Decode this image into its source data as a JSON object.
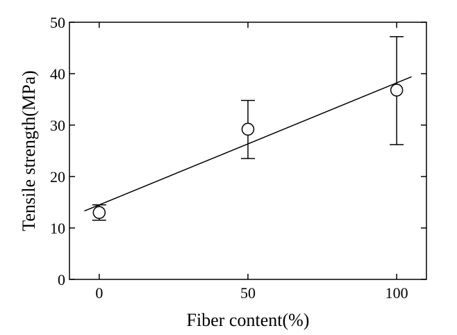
{
  "chart_data": {
    "type": "scatter",
    "xlabel": "Fiber content(%)",
    "ylabel": "Tensile strength(MPa)",
    "xlim": [
      -10,
      110
    ],
    "ylim": [
      0,
      50
    ],
    "xticks": [
      0,
      50,
      100
    ],
    "yticks": [
      0,
      10,
      20,
      30,
      40,
      50
    ],
    "grid": false,
    "points": [
      {
        "x": 0,
        "y": 13.0,
        "err_low": 11.5,
        "err_high": 14.5
      },
      {
        "x": 50,
        "y": 29.2,
        "err_low": 23.5,
        "err_high": 34.8
      },
      {
        "x": 100,
        "y": 36.8,
        "err_low": 26.2,
        "err_high": 47.2
      }
    ],
    "fit_line": {
      "x": [
        -5,
        105
      ],
      "y": [
        13.3,
        39.4
      ]
    }
  }
}
